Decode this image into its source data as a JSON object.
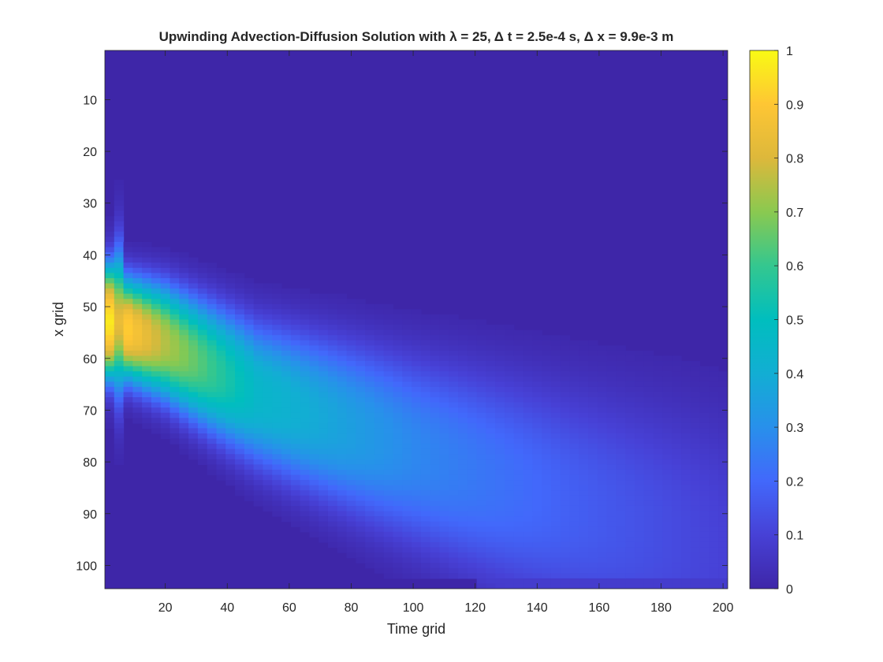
{
  "chart_data": {
    "type": "heatmap",
    "title": "Upwinding Advection-Diffusion Solution with λ = 25, Δ t = 2.5e-4 s, Δ x = 9.9e-3 m",
    "xlabel": "Time grid",
    "ylabel": "x grid",
    "x_range": [
      0.5,
      201.5
    ],
    "y_range": [
      0.5,
      104.5
    ],
    "y_reversed": true,
    "x_ticks": [
      20,
      40,
      60,
      80,
      100,
      120,
      140,
      160,
      180,
      200
    ],
    "y_ticks": [
      10,
      20,
      30,
      40,
      50,
      60,
      70,
      80,
      90,
      100
    ],
    "colorbar": {
      "range": [
        0,
        1
      ],
      "ticks": [
        0,
        0.1,
        0.2,
        0.3,
        0.4,
        0.5,
        0.6,
        0.7,
        0.8,
        0.9,
        1
      ],
      "colormap": "parula"
    },
    "grid": false,
    "features": {
      "initial_pulse": {
        "x_grid_range": [
          41,
          65
        ],
        "peak_value": 1,
        "time_grid_start": 1
      },
      "plume_center_at_time": [
        {
          "time": 1,
          "x": 53,
          "value": 1
        },
        {
          "time": 20,
          "x": 57,
          "value": 0.75
        },
        {
          "time": 50,
          "x": 67,
          "value": 0.45
        },
        {
          "time": 100,
          "x": 78,
          "value": 0.28
        },
        {
          "time": 150,
          "x": 88,
          "value": 0.18
        },
        {
          "time": 200,
          "x": 97,
          "value": 0.1
        }
      ],
      "lower_boundary_row": 103,
      "lower_boundary_from_time": 120
    }
  }
}
